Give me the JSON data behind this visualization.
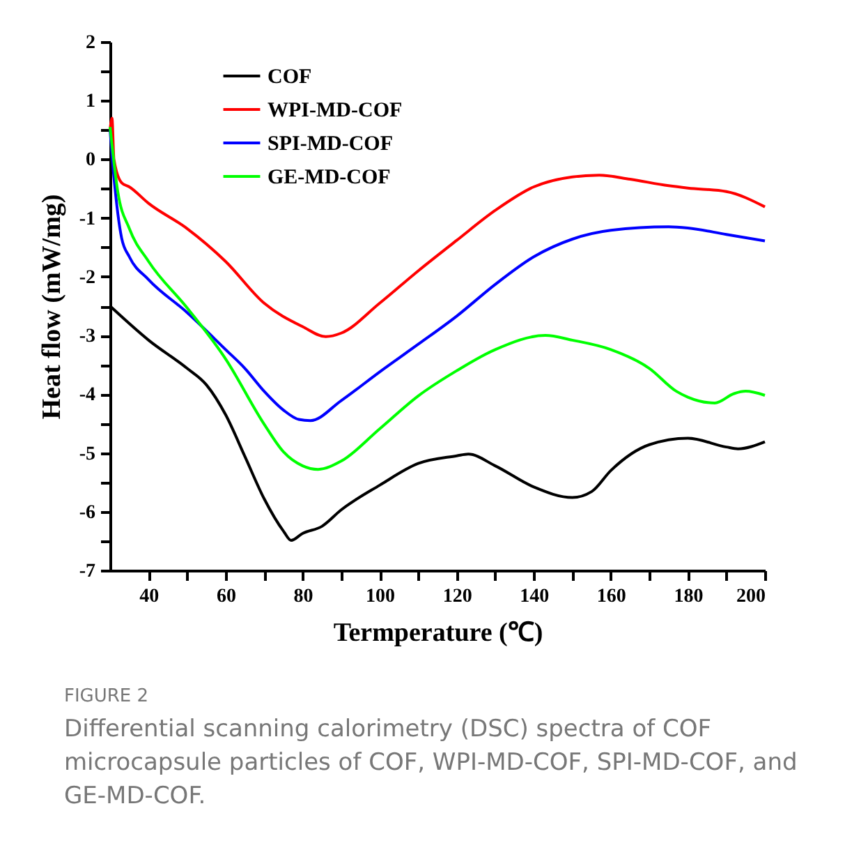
{
  "chart_data": {
    "type": "line",
    "xlabel": "Termperature (℃)",
    "ylabel": "Heat flow (mW/mg)",
    "annotations": [
      "FIGURE 2",
      "Differential scanning calorimetry (DSC) spectra of COF microcapsule particles of COF, WPI-MD-COF, SPI-MD-COF, and GE-MD-COF."
    ],
    "xlim": [
      30,
      200
    ],
    "ylim": [
      -7,
      2
    ],
    "xticks": [
      40,
      {
        "value": 50,
        "label": null
      },
      60,
      {
        "value": 70,
        "label": null
      },
      80,
      {
        "value": 90,
        "label": null
      },
      100,
      {
        "value": 110,
        "label": null
      },
      120,
      {
        "value": 130,
        "label": null
      },
      140,
      {
        "value": 150,
        "label": null
      },
      160,
      {
        "value": 170,
        "label": null
      },
      180,
      {
        "value": 190,
        "label": null
      },
      200
    ],
    "yticks": [
      -7,
      {
        "value": -6.5,
        "label": null
      },
      -6,
      {
        "value": -5.5,
        "label": null
      },
      -5,
      {
        "value": -4.5,
        "label": null
      },
      -4,
      {
        "value": -3.5,
        "label": null
      },
      -3,
      {
        "value": -2.5,
        "label": null
      },
      -2,
      {
        "value": -1.5,
        "label": null
      },
      -1,
      {
        "value": -0.5,
        "label": null
      },
      0,
      {
        "value": 0.5,
        "label": null
      },
      1,
      {
        "value": 1.5,
        "label": null
      },
      2
    ],
    "grid": false,
    "legend": "top left",
    "line_style": "solid",
    "marker": "none",
    "series": [
      {
        "name": "COF",
        "color": "#000000",
        "x": [
          30,
          40,
          50,
          55,
          60,
          65,
          70,
          75,
          77,
          80,
          85,
          90,
          100,
          110,
          120,
          123,
          130,
          140,
          150,
          155,
          160,
          170,
          180,
          190,
          193,
          200
        ],
        "values": [
          -2.5,
          -3.08,
          -3.56,
          -3.84,
          -4.35,
          -5.06,
          -5.78,
          -6.33,
          -6.49,
          -6.37,
          -6.25,
          -5.97,
          -5.55,
          -5.18,
          -5.05,
          -5.02,
          -5.22,
          -5.58,
          -5.76,
          -5.66,
          -5.3,
          -4.86,
          -4.75,
          -4.9,
          -4.93,
          -4.81
        ]
      },
      {
        "name": "WPI-MD-COF",
        "color": "#ff0000",
        "x": [
          30,
          30.5,
          31,
          33,
          35,
          40,
          50,
          60,
          70,
          80,
          86,
          90,
          100,
          110,
          120,
          130,
          140,
          150,
          157,
          165,
          175,
          180,
          190,
          200
        ],
        "values": [
          0.5,
          0.7,
          0.0,
          -0.4,
          -0.47,
          -0.75,
          -1.18,
          -1.74,
          -2.45,
          -2.85,
          -3.02,
          -2.96,
          -2.45,
          -1.9,
          -1.38,
          -0.87,
          -0.47,
          -0.3,
          -0.27,
          -0.34,
          -0.45,
          -0.49,
          -0.55,
          -0.81
        ]
      },
      {
        "name": "SPI-MD-COF",
        "color": "#0000ff",
        "x": [
          30,
          31,
          33,
          35,
          40,
          50,
          60,
          65,
          70,
          75,
          79,
          82,
          90,
          100,
          110,
          120,
          130,
          140,
          150,
          160,
          175,
          180,
          190,
          200
        ],
        "values": [
          0.5,
          -0.3,
          -1.34,
          -1.66,
          -2.05,
          -2.61,
          -3.24,
          -3.56,
          -3.95,
          -4.27,
          -4.43,
          -4.45,
          -4.11,
          -3.62,
          -3.15,
          -2.67,
          -2.13,
          -1.66,
          -1.36,
          -1.21,
          -1.15,
          -1.17,
          -1.28,
          -1.39
        ]
      },
      {
        "name": "GE-MD-COF",
        "color": "#00ff00",
        "x": [
          30,
          32,
          35,
          40,
          50,
          60,
          70,
          75,
          80,
          84,
          90,
          100,
          110,
          120,
          130,
          143,
          150,
          160,
          170,
          177,
          180,
          187,
          192,
          195,
          200
        ],
        "values": [
          0.55,
          -0.55,
          -1.18,
          -1.74,
          -2.53,
          -3.4,
          -4.51,
          -4.98,
          -5.22,
          -5.28,
          -5.14,
          -4.59,
          -4.03,
          -3.6,
          -3.24,
          -3.0,
          -3.08,
          -3.24,
          -3.56,
          -3.95,
          -4.05,
          -4.15,
          -3.99,
          -3.95,
          -4.02
        ]
      }
    ]
  }
}
